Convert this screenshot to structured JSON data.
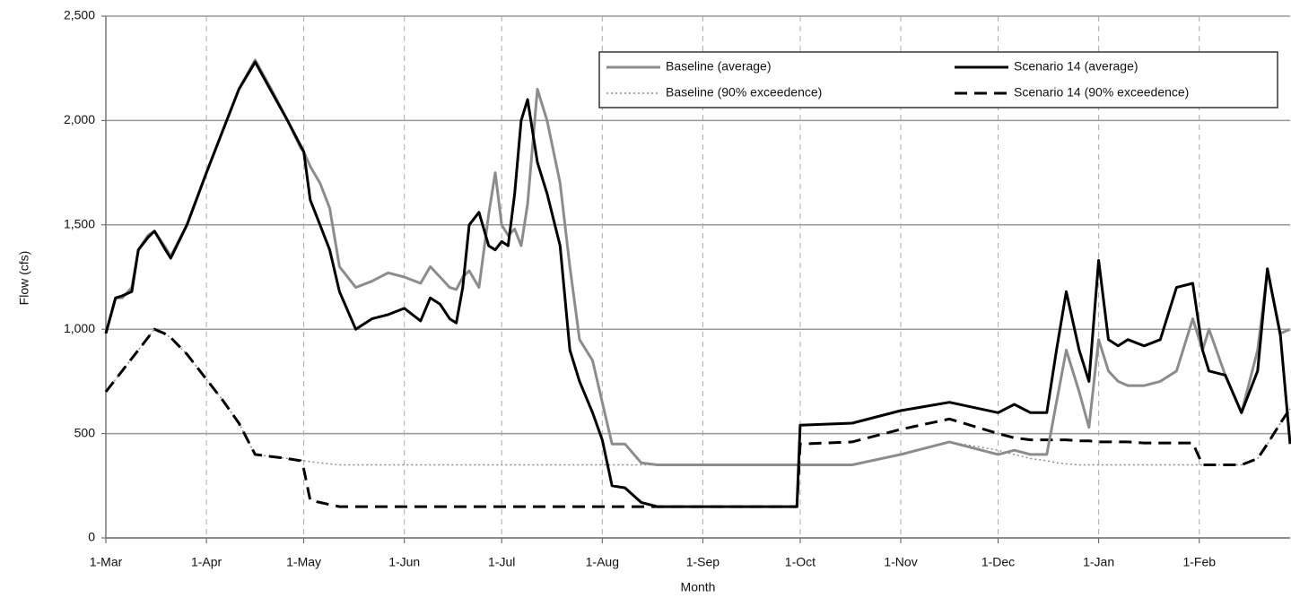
{
  "chart_data": {
    "type": "line",
    "xlabel": "Month",
    "ylabel": "Flow (cfs)",
    "xlim": [
      0,
      365
    ],
    "ylim": [
      0,
      2500
    ],
    "yticks": [
      0,
      {
        "value": 500,
        "label": "500"
      },
      {
        "value": 1000,
        "label": "1,000"
      },
      {
        "value": 1500,
        "label": "1,500"
      },
      {
        "value": 2000,
        "label": "2,000"
      },
      {
        "value": 2500,
        "label": "2,500"
      }
    ],
    "xticks": [
      {
        "value": 0,
        "label": "1-Mar"
      },
      {
        "value": 31,
        "label": "1-Apr"
      },
      {
        "value": 61,
        "label": "1-May"
      },
      {
        "value": 92,
        "label": "1-Jun"
      },
      {
        "value": 122,
        "label": "1-Jul"
      },
      {
        "value": 153,
        "label": "1-Aug"
      },
      {
        "value": 184,
        "label": "1-Sep"
      },
      {
        "value": 214,
        "label": "1-Oct"
      },
      {
        "value": 245,
        "label": "1-Nov"
      },
      {
        "value": 275,
        "label": "1-Dec"
      },
      {
        "value": 306,
        "label": "1-Jan"
      },
      {
        "value": 337,
        "label": "1-Feb"
      }
    ],
    "grid": true,
    "legend": "upper right",
    "x": [
      0,
      3,
      5,
      8,
      10,
      13,
      15,
      18,
      20,
      25,
      31,
      36,
      41,
      46,
      51,
      56,
      60,
      61,
      63,
      66,
      69,
      72,
      77,
      82,
      87,
      92,
      97,
      100,
      103,
      106,
      108,
      110,
      112,
      115,
      118,
      120,
      122,
      124,
      126,
      128,
      130,
      133,
      136,
      140,
      143,
      146,
      150,
      153,
      156,
      160,
      165,
      170,
      213,
      214,
      230,
      245,
      260,
      275,
      280,
      285,
      290,
      293,
      296,
      300,
      303,
      306,
      309,
      312,
      315,
      320,
      325,
      330,
      335,
      338,
      340,
      345,
      350,
      355,
      358,
      362,
      365
    ],
    "series": [
      {
        "name": "Baseline (average)",
        "color": "#8c8c8c",
        "dash": "solid",
        "values": [
          980,
          1150,
          1150,
          1200,
          1380,
          1450,
          1470,
          1400,
          1350,
          1500,
          1750,
          1950,
          2150,
          2290,
          2150,
          2000,
          1870,
          1850,
          1780,
          1700,
          1580,
          1300,
          1200,
          1230,
          1270,
          1250,
          1220,
          1300,
          1250,
          1200,
          1190,
          1250,
          1280,
          1200,
          1550,
          1750,
          1500,
          1450,
          1480,
          1400,
          1600,
          2150,
          2000,
          1700,
          1300,
          950,
          850,
          650,
          450,
          450,
          360,
          350,
          350,
          350,
          350,
          400,
          460,
          400,
          420,
          400,
          400,
          650,
          900,
          700,
          530,
          950,
          800,
          750,
          730,
          730,
          750,
          800,
          1050,
          900,
          1000,
          780,
          600,
          900,
          1280,
          980,
          1000
        ]
      },
      {
        "name": "Scenario 14 (average)",
        "color": "#000000",
        "dash": "solid",
        "values": [
          980,
          1150,
          1160,
          1180,
          1380,
          1440,
          1470,
          1390,
          1340,
          1500,
          1750,
          1950,
          2150,
          2280,
          2140,
          2000,
          1880,
          1850,
          1620,
          1500,
          1380,
          1180,
          1000,
          1050,
          1070,
          1100,
          1040,
          1150,
          1120,
          1050,
          1030,
          1200,
          1500,
          1560,
          1400,
          1380,
          1420,
          1400,
          1650,
          2000,
          2100,
          1800,
          1650,
          1400,
          900,
          750,
          600,
          470,
          250,
          240,
          170,
          150,
          150,
          540,
          550,
          610,
          650,
          600,
          640,
          600,
          600,
          900,
          1180,
          900,
          750,
          1330,
          950,
          920,
          950,
          920,
          950,
          1200,
          1220,
          900,
          800,
          780,
          600,
          800,
          1290,
          970,
          450
        ]
      },
      {
        "name": "Baseline (90% exceedence)",
        "color": "#8c8c8c",
        "dash": "dotted",
        "values": [
          700,
          760,
          800,
          860,
          900,
          960,
          1000,
          980,
          960,
          880,
          760,
          660,
          550,
          400,
          390,
          380,
          370,
          370,
          365,
          360,
          355,
          350,
          350,
          350,
          350,
          350,
          350,
          350,
          350,
          350,
          350,
          350,
          350,
          350,
          350,
          350,
          350,
          350,
          350,
          350,
          350,
          350,
          350,
          350,
          350,
          350,
          350,
          350,
          350,
          350,
          350,
          350,
          350,
          350,
          350,
          400,
          460,
          420,
          400,
          380,
          370,
          360,
          355,
          350,
          350,
          350,
          350,
          350,
          350,
          350,
          350,
          350,
          350,
          350,
          350,
          350,
          350,
          380,
          450,
          550,
          620
        ]
      },
      {
        "name": "Scenario 14 (90% exceedence)",
        "color": "#000000",
        "dash": "dashed",
        "values": [
          700,
          760,
          800,
          860,
          900,
          960,
          1000,
          980,
          960,
          880,
          760,
          660,
          550,
          400,
          390,
          380,
          370,
          330,
          180,
          170,
          160,
          150,
          150,
          150,
          150,
          150,
          150,
          150,
          150,
          150,
          150,
          150,
          150,
          150,
          150,
          150,
          150,
          150,
          150,
          150,
          150,
          150,
          150,
          150,
          150,
          150,
          150,
          150,
          150,
          150,
          150,
          150,
          150,
          450,
          460,
          520,
          570,
          500,
          480,
          470,
          470,
          470,
          470,
          465,
          465,
          460,
          460,
          460,
          460,
          455,
          455,
          455,
          455,
          350,
          350,
          350,
          350,
          380,
          450,
          550,
          620
        ]
      }
    ]
  }
}
